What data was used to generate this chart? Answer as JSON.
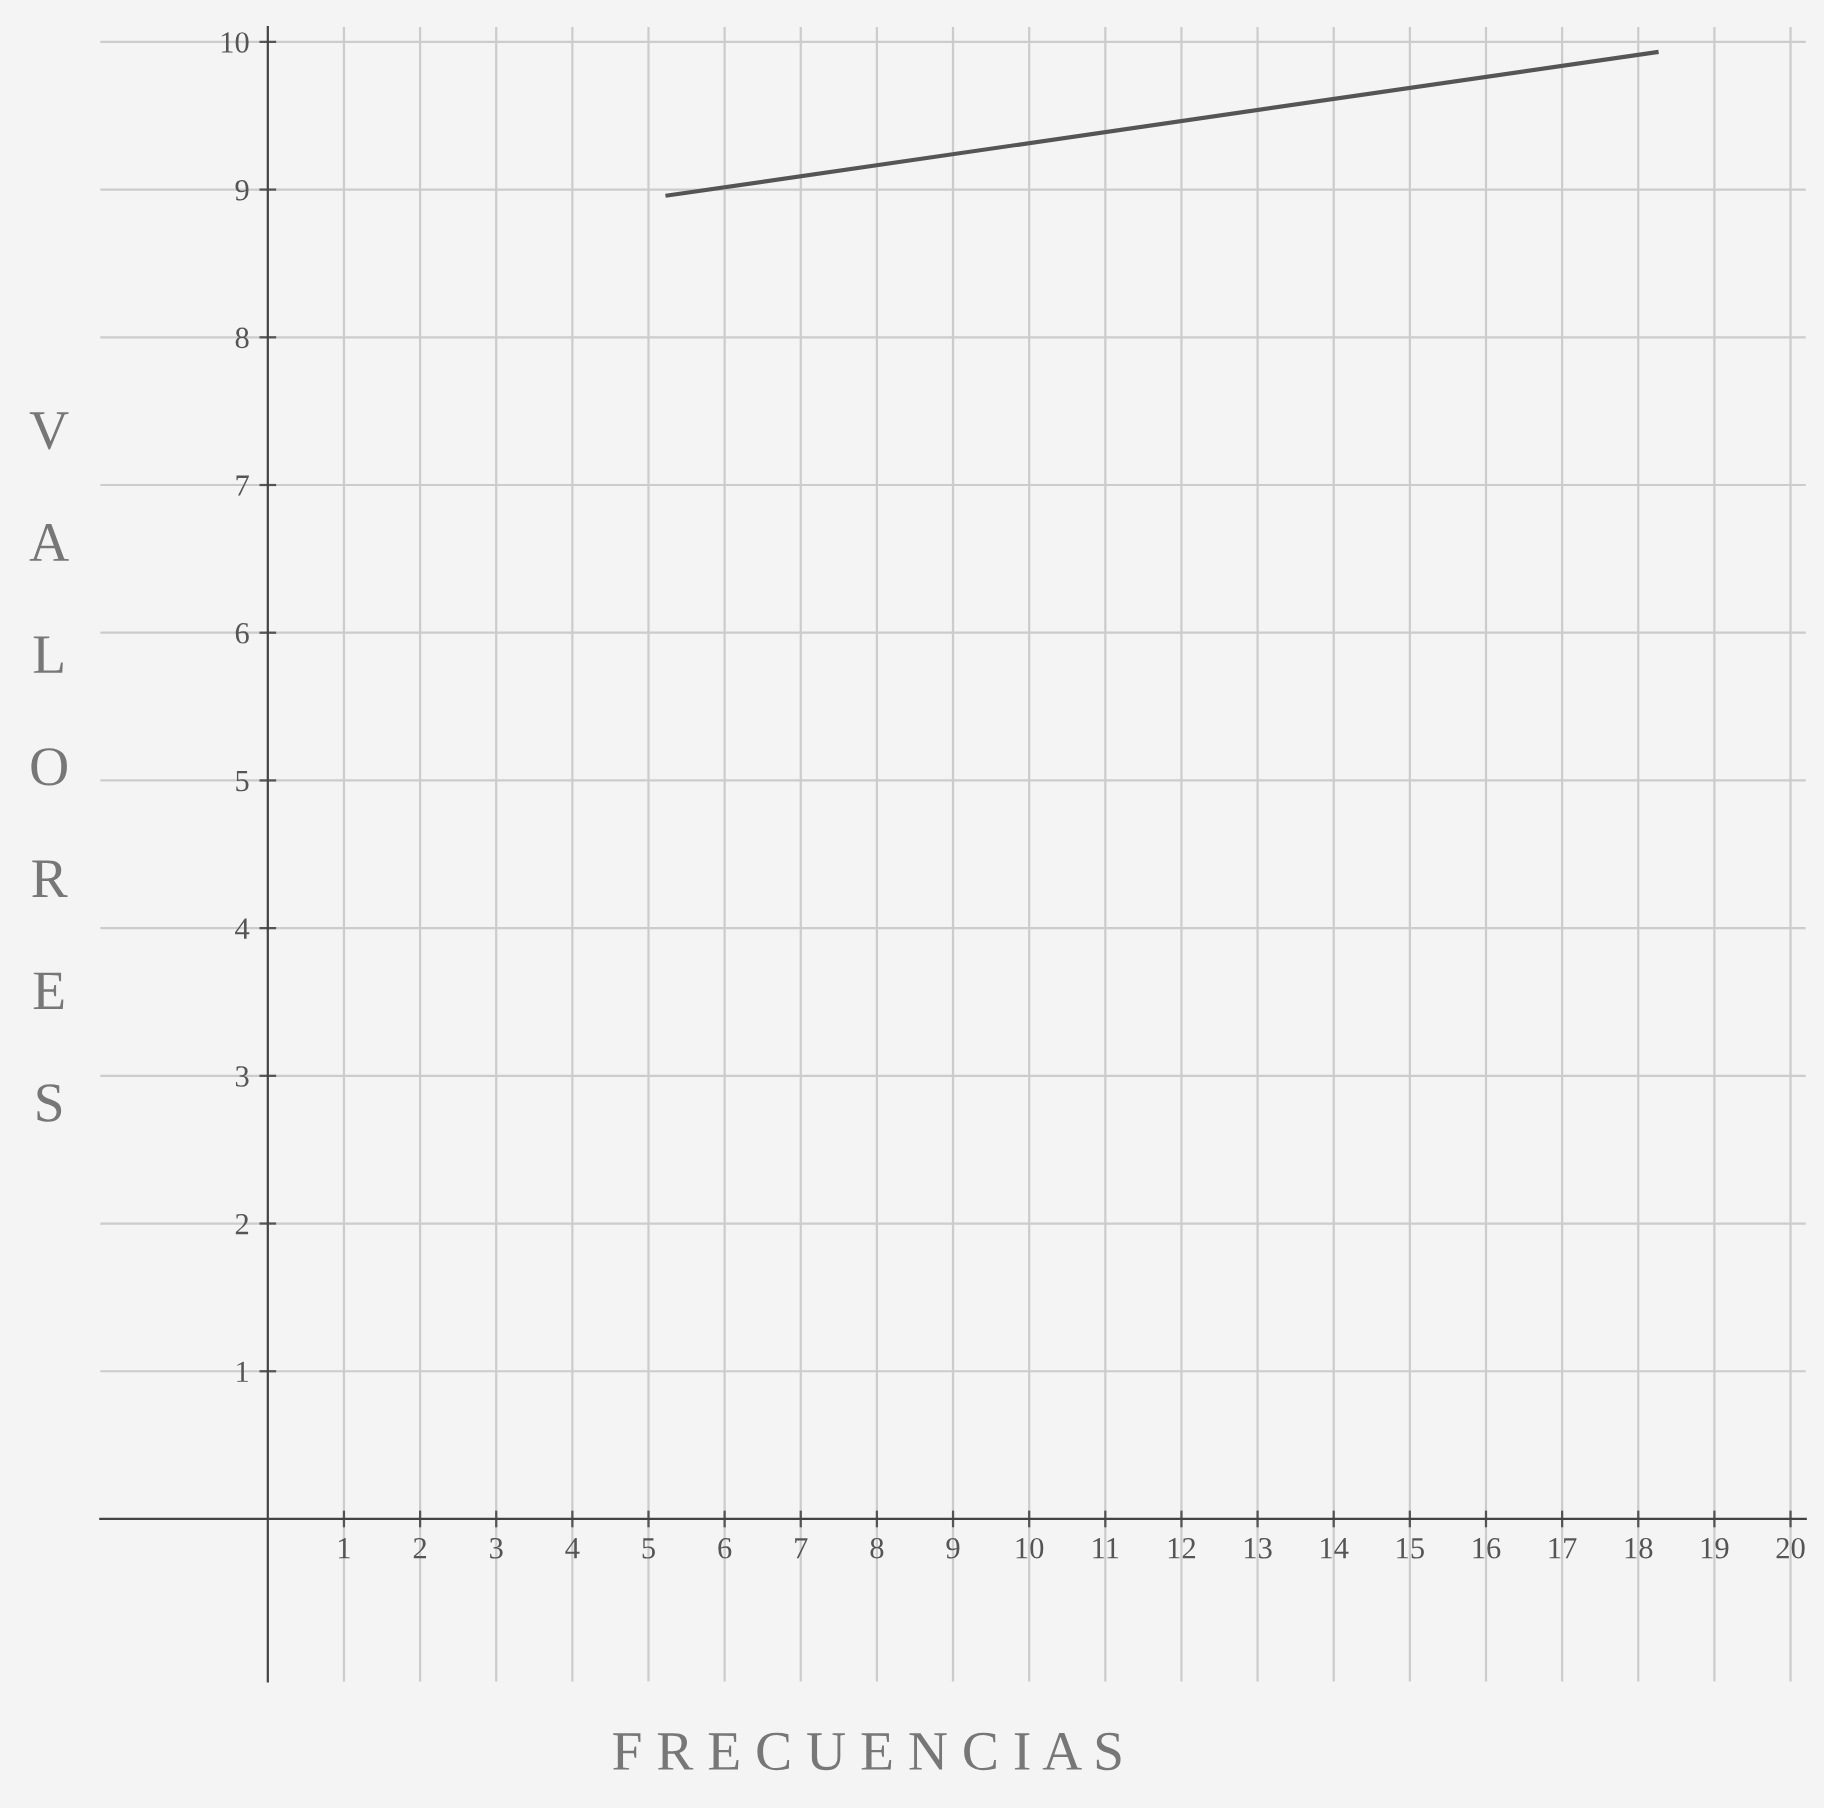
{
  "chart_data": {
    "type": "line",
    "xlabel": "F R E C U E N C I A S",
    "ylabel": "VALORES",
    "x": [
      5.25,
      18.24
    ],
    "series": [
      {
        "color": "#555555",
        "values": [
          8.96,
          9.93
        ]
      }
    ],
    "xlim": [
      -2.2,
      20.2
    ],
    "ylim": [
      -1.1,
      10.1
    ],
    "xticks": [
      1,
      2,
      3,
      4,
      5,
      6,
      7,
      8,
      9,
      10,
      11,
      12,
      13,
      14,
      15,
      16,
      17,
      18,
      19,
      20
    ],
    "yticks": [
      1,
      2,
      3,
      4,
      5,
      6,
      7,
      8,
      9,
      10
    ],
    "grid": true,
    "legend": false,
    "marker": "none",
    "line_style": "solid"
  }
}
